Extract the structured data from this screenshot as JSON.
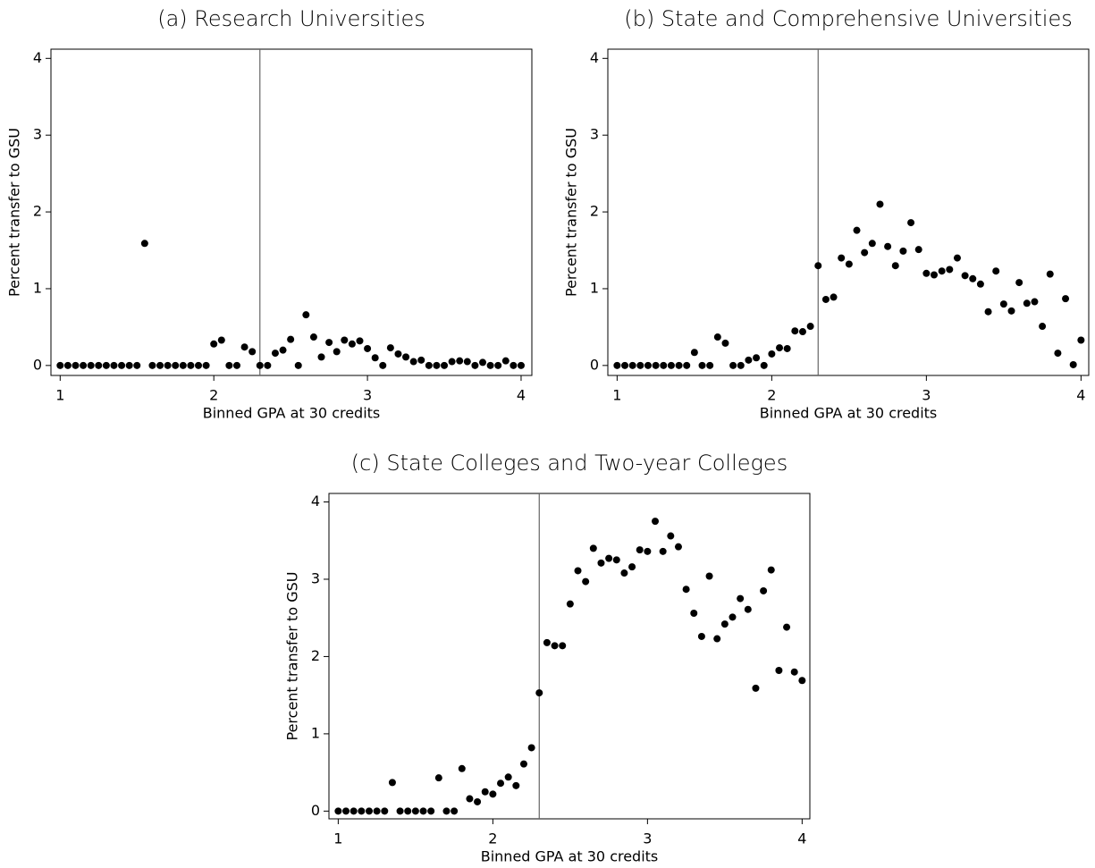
{
  "chart_data": [
    {
      "type": "scatter",
      "title": "(a) Research Universities",
      "xlabel": "Binned GPA at 30 credits",
      "ylabel": "Percent transfer to GSU",
      "x": [
        1.0,
        1.05,
        1.1,
        1.15,
        1.2,
        1.25,
        1.3,
        1.35,
        1.4,
        1.45,
        1.5,
        1.55,
        1.6,
        1.65,
        1.7,
        1.75,
        1.8,
        1.85,
        1.9,
        1.95,
        2.0,
        2.05,
        2.1,
        2.15,
        2.2,
        2.25,
        2.3,
        2.35,
        2.4,
        2.45,
        2.5,
        2.55,
        2.6,
        2.65,
        2.7,
        2.75,
        2.8,
        2.85,
        2.9,
        2.95,
        3.0,
        3.05,
        3.1,
        3.15,
        3.2,
        3.25,
        3.3,
        3.35,
        3.4,
        3.45,
        3.5,
        3.55,
        3.6,
        3.65,
        3.7,
        3.75,
        3.8,
        3.85,
        3.9,
        3.95,
        4.0
      ],
      "values": [
        0,
        0,
        0,
        0,
        0,
        0,
        0,
        0,
        0,
        0,
        0,
        1.59,
        0,
        0,
        0,
        0,
        0,
        0,
        0,
        0,
        0.28,
        0.33,
        0,
        0,
        0.24,
        0.18,
        0,
        0,
        0.16,
        0.2,
        0.34,
        0,
        0.66,
        0.37,
        0.11,
        0.3,
        0.18,
        0.33,
        0.28,
        0.32,
        0.22,
        0.1,
        0,
        0.23,
        0.15,
        0.11,
        0.05,
        0.07,
        0,
        0,
        0,
        0.05,
        0.06,
        0.05,
        0,
        0.04,
        0,
        0,
        0.06,
        0,
        0
      ],
      "color": "#000000",
      "vline": 2.3,
      "xlim": [
        0.94,
        4.07
      ],
      "ylim": [
        -0.13,
        4.12
      ],
      "xticks": [
        1,
        2,
        3,
        4
      ],
      "yticks": [
        0,
        1,
        2,
        3,
        4
      ]
    },
    {
      "type": "scatter",
      "title": "(b) State and Comprehensive Universities",
      "xlabel": "Binned GPA at 30 credits",
      "ylabel": "Percent transfer to GSU",
      "x": [
        1.0,
        1.05,
        1.1,
        1.15,
        1.2,
        1.25,
        1.3,
        1.35,
        1.4,
        1.45,
        1.5,
        1.55,
        1.6,
        1.65,
        1.7,
        1.75,
        1.8,
        1.85,
        1.9,
        1.95,
        2.0,
        2.05,
        2.1,
        2.15,
        2.2,
        2.25,
        2.3,
        2.35,
        2.4,
        2.45,
        2.5,
        2.55,
        2.6,
        2.65,
        2.7,
        2.75,
        2.8,
        2.85,
        2.9,
        2.95,
        3.0,
        3.05,
        3.1,
        3.15,
        3.2,
        3.25,
        3.3,
        3.35,
        3.4,
        3.45,
        3.5,
        3.55,
        3.6,
        3.65,
        3.7,
        3.75,
        3.8,
        3.85,
        3.9,
        3.95,
        4.0
      ],
      "values": [
        0,
        0,
        0,
        0,
        0,
        0,
        0,
        0,
        0,
        0,
        0.17,
        0,
        0,
        0.37,
        0.29,
        0,
        0,
        0.07,
        0.1,
        0,
        0.15,
        0.23,
        0.22,
        0.45,
        0.44,
        0.51,
        1.3,
        0.86,
        0.89,
        1.4,
        1.32,
        1.76,
        1.47,
        1.59,
        2.1,
        1.55,
        1.3,
        1.49,
        1.86,
        1.51,
        1.2,
        1.18,
        1.23,
        1.25,
        1.4,
        1.17,
        1.13,
        1.06,
        0.7,
        1.23,
        0.8,
        0.71,
        1.08,
        0.81,
        0.83,
        0.51,
        1.19,
        0.16,
        0.87,
        0.01,
        0.33
      ],
      "color": "#000000",
      "vline": 2.3,
      "xlim": [
        0.94,
        4.05
      ],
      "ylim": [
        -0.13,
        4.12
      ],
      "xticks": [
        1,
        2,
        3,
        4
      ],
      "yticks": [
        0,
        1,
        2,
        3,
        4
      ]
    },
    {
      "type": "scatter",
      "title": "(c) State Colleges and Two-year Colleges",
      "xlabel": "Binned GPA at 30 credits",
      "ylabel": "Percent transfer to GSU",
      "x": [
        1.0,
        1.05,
        1.1,
        1.15,
        1.2,
        1.25,
        1.3,
        1.35,
        1.4,
        1.45,
        1.5,
        1.55,
        1.6,
        1.65,
        1.7,
        1.75,
        1.8,
        1.85,
        1.9,
        1.95,
        2.0,
        2.05,
        2.1,
        2.15,
        2.2,
        2.25,
        2.3,
        2.35,
        2.4,
        2.45,
        2.5,
        2.55,
        2.6,
        2.65,
        2.7,
        2.75,
        2.8,
        2.85,
        2.9,
        2.95,
        3.0,
        3.05,
        3.1,
        3.15,
        3.2,
        3.25,
        3.3,
        3.35,
        3.4,
        3.45,
        3.5,
        3.55,
        3.6,
        3.65,
        3.7,
        3.75,
        3.8,
        3.85,
        3.9,
        3.95,
        4.0
      ],
      "values": [
        0,
        0,
        0,
        0,
        0,
        0,
        0,
        0.37,
        0,
        0,
        0,
        0,
        0,
        0.43,
        0,
        0,
        0.55,
        0.16,
        0.12,
        0.25,
        0.22,
        0.36,
        0.44,
        0.33,
        0.61,
        0.82,
        1.53,
        2.18,
        2.14,
        2.14,
        2.68,
        3.11,
        2.97,
        3.4,
        3.21,
        3.27,
        3.25,
        3.08,
        3.16,
        3.38,
        3.36,
        3.75,
        3.36,
        3.56,
        3.42,
        2.87,
        2.56,
        2.26,
        3.04,
        2.23,
        2.42,
        2.51,
        2.75,
        2.61,
        1.59,
        2.85,
        3.12,
        1.82,
        2.38,
        1.8,
        1.69
      ],
      "color": "#000000",
      "vline": 2.3,
      "xlim": [
        0.94,
        4.05
      ],
      "ylim": [
        -0.1,
        4.11
      ],
      "xticks": [
        1,
        2,
        3,
        4
      ],
      "yticks": [
        0,
        1,
        2,
        3,
        4
      ]
    }
  ]
}
